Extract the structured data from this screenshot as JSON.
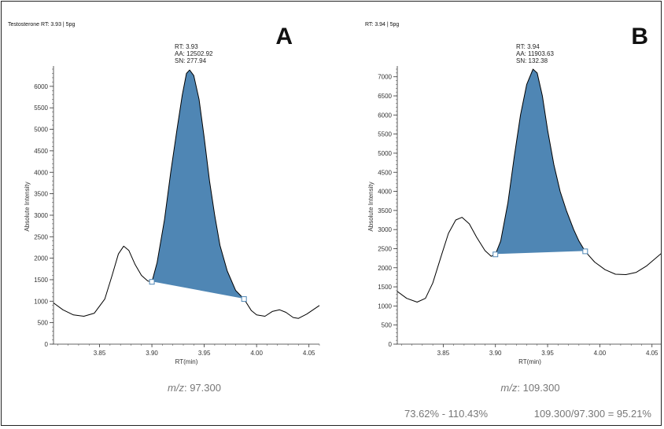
{
  "colors": {
    "peak_fill": "#4f86b4",
    "trace": "#000000",
    "baseline": "#ffffff",
    "caption": "#777777"
  },
  "footer": {
    "range_text": "73.62% - 110.43%",
    "ratio_text": "109.300/97.300 = 95.21%"
  },
  "chart_data": [
    {
      "type": "line",
      "panel_letter": "A",
      "header": "Testosterone  RT: 3.93 | 5pg",
      "xlabel": "RT(min)",
      "ylabel": "Absolute Intensity",
      "xlim": [
        3.806,
        4.06
      ],
      "ylim": [
        0,
        6400
      ],
      "xticks": [
        3.85,
        3.9,
        3.95,
        4.0,
        4.05
      ],
      "xtick_labels": [
        "3.85",
        "3.90",
        "3.95",
        "4.00",
        "4.05"
      ],
      "yticks": [
        0,
        500,
        1000,
        1500,
        2000,
        2500,
        3000,
        3500,
        4000,
        4500,
        5000,
        5500,
        6000
      ],
      "yminor_step": 100,
      "annotation": [
        "RT: 3.93",
        "AA: 12502.92",
        "SN: 277.94"
      ],
      "mz_label": "m/z",
      "mz_value": ": 97.300",
      "peak": {
        "start": [
          3.9,
          1450
        ],
        "end": [
          3.988,
          1050
        ]
      },
      "trace": [
        [
          3.806,
          960
        ],
        [
          3.815,
          800
        ],
        [
          3.825,
          680
        ],
        [
          3.835,
          650
        ],
        [
          3.845,
          720
        ],
        [
          3.855,
          1050
        ],
        [
          3.862,
          1600
        ],
        [
          3.868,
          2100
        ],
        [
          3.873,
          2280
        ],
        [
          3.878,
          2180
        ],
        [
          3.884,
          1850
        ],
        [
          3.89,
          1600
        ],
        [
          3.896,
          1470
        ],
        [
          3.9,
          1450
        ],
        [
          3.905,
          1900
        ],
        [
          3.912,
          2900
        ],
        [
          3.918,
          4000
        ],
        [
          3.924,
          5000
        ],
        [
          3.929,
          5800
        ],
        [
          3.933,
          6300
        ],
        [
          3.936,
          6380
        ],
        [
          3.94,
          6250
        ],
        [
          3.945,
          5700
        ],
        [
          3.95,
          4800
        ],
        [
          3.955,
          3800
        ],
        [
          3.96,
          3000
        ],
        [
          3.965,
          2300
        ],
        [
          3.972,
          1700
        ],
        [
          3.98,
          1250
        ],
        [
          3.988,
          1050
        ],
        [
          3.995,
          780
        ],
        [
          4.0,
          680
        ],
        [
          4.008,
          650
        ],
        [
          4.015,
          760
        ],
        [
          4.022,
          800
        ],
        [
          4.028,
          740
        ],
        [
          4.035,
          620
        ],
        [
          4.04,
          600
        ],
        [
          4.048,
          700
        ],
        [
          4.06,
          900
        ]
      ]
    },
    {
      "type": "line",
      "panel_letter": "B",
      "header": "RT: 3.94 | 5pg",
      "xlabel": "RT(min)",
      "ylabel": "Absolute Intensity",
      "xlim": [
        3.806,
        4.06
      ],
      "ylim": [
        0,
        7200
      ],
      "xticks": [
        3.85,
        3.9,
        3.95,
        4.0,
        4.05
      ],
      "xtick_labels": [
        "3.85",
        "3.90",
        "3.95",
        "4.00",
        "4.05"
      ],
      "yticks": [
        0,
        500,
        1000,
        1500,
        2000,
        2500,
        3000,
        3500,
        4000,
        4500,
        5000,
        5500,
        6000,
        6500,
        7000
      ],
      "yminor_step": 100,
      "annotation": [
        "RT: 3.94",
        "AA: 11903.63",
        "SN: 132.38"
      ],
      "mz_label": "m/z",
      "mz_value": ": 109.300",
      "peak": {
        "start": [
          3.9,
          2350
        ],
        "end": [
          3.986,
          2430
        ]
      },
      "trace": [
        [
          3.806,
          1380
        ],
        [
          3.815,
          1200
        ],
        [
          3.825,
          1100
        ],
        [
          3.833,
          1200
        ],
        [
          3.84,
          1600
        ],
        [
          3.848,
          2300
        ],
        [
          3.855,
          2900
        ],
        [
          3.862,
          3250
        ],
        [
          3.868,
          3320
        ],
        [
          3.875,
          3150
        ],
        [
          3.882,
          2800
        ],
        [
          3.89,
          2450
        ],
        [
          3.896,
          2300
        ],
        [
          3.9,
          2350
        ],
        [
          3.905,
          2700
        ],
        [
          3.912,
          3700
        ],
        [
          3.918,
          4900
        ],
        [
          3.924,
          6000
        ],
        [
          3.93,
          6800
        ],
        [
          3.936,
          7200
        ],
        [
          3.94,
          7100
        ],
        [
          3.945,
          6500
        ],
        [
          3.95,
          5600
        ],
        [
          3.956,
          4700
        ],
        [
          3.962,
          4000
        ],
        [
          3.968,
          3500
        ],
        [
          3.975,
          3000
        ],
        [
          3.98,
          2700
        ],
        [
          3.986,
          2430
        ],
        [
          3.995,
          2150
        ],
        [
          4.005,
          1950
        ],
        [
          4.015,
          1830
        ],
        [
          4.025,
          1820
        ],
        [
          4.035,
          1880
        ],
        [
          4.045,
          2050
        ],
        [
          4.06,
          2400
        ]
      ]
    }
  ]
}
